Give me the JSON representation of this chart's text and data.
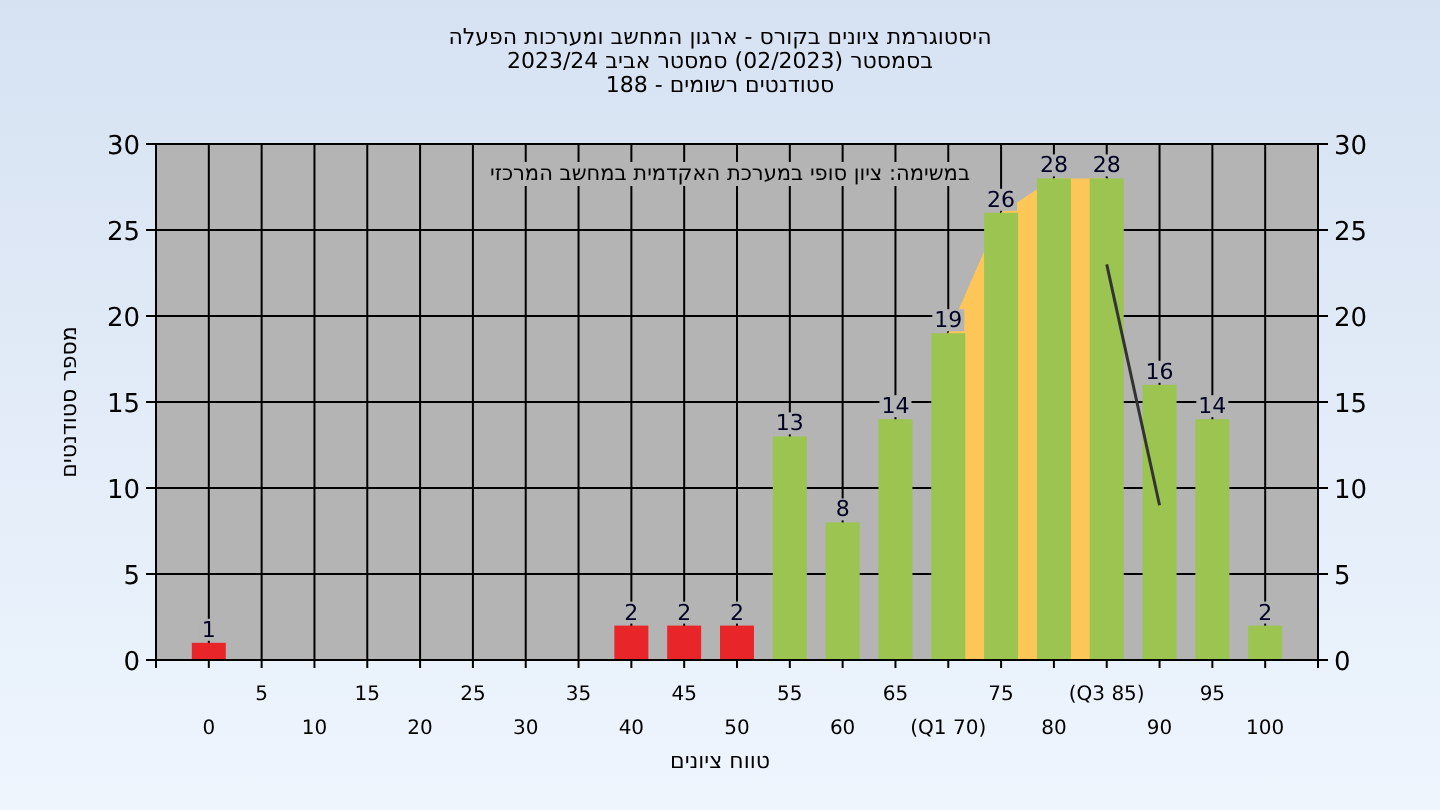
{
  "chart_data": {
    "type": "bar",
    "title": "היסטוגרמת ציונים בקורס - ארגון המחשב ומערכות הפעלה",
    "subtitle": "בסמסטר  (02/2023)  סמסטר אביב 2023/24\nסטודנטים רשומים - 188",
    "xlabel": "טווח ציונים",
    "ylabel": "מספר סטודנטים",
    "annotations": [
      "במשימה: ציון סופי במערכת האקדמית במחשב המרכזי"
    ],
    "categories": [
      "0",
      "5",
      "10",
      "15",
      "20",
      "25",
      "30",
      "35",
      "40",
      "45",
      "50",
      "55",
      "60",
      "65",
      "(Q1 70)",
      "75",
      "80",
      "(Q3 85)",
      "90",
      "95",
      "100"
    ],
    "series": [
      {
        "type": "area",
        "color": "#fcc659",
        "values": [
          null,
          null,
          null,
          null,
          null,
          null,
          null,
          null,
          null,
          null,
          null,
          null,
          null,
          null,
          19,
          26,
          28,
          28,
          null,
          null,
          null
        ]
      },
      {
        "values": [
          1,
          0,
          0,
          0,
          0,
          0,
          0,
          0,
          2,
          2,
          2,
          13,
          8,
          14,
          19,
          26,
          28,
          28,
          16,
          14,
          2
        ],
        "colors": [
          "#e8262a",
          "#e8262a",
          "#e8262a",
          "#e8262a",
          "#e8262a",
          "#e8262a",
          "#e8262a",
          "#e8262a",
          "#e8262a",
          "#e8262a",
          "#e8262a",
          "#9bc450",
          "#9bc450",
          "#9bc450",
          "#9bc450",
          "#9bc450",
          "#9bc450",
          "#9bc450",
          "#9bc450",
          "#9bc450",
          "#9bc450"
        ],
        "value_labels": [
          "1",
          null,
          null,
          null,
          null,
          null,
          null,
          null,
          "2",
          "2",
          "2",
          "13",
          "8",
          "14",
          "19",
          "26",
          "28",
          "28",
          "16",
          "14",
          "2"
        ]
      },
      {
        "type": "line",
        "color": "#333333",
        "values": [
          null,
          null,
          null,
          null,
          null,
          null,
          null,
          null,
          null,
          null,
          null,
          null,
          null,
          null,
          null,
          null,
          null,
          23,
          9,
          null,
          null
        ]
      }
    ],
    "ylim": [
      0,
      30
    ],
    "yticks": [
      0,
      5,
      10,
      15,
      20,
      25,
      30
    ],
    "y2lim": [
      0,
      30
    ],
    "y2ticks": [
      0,
      5,
      10,
      15,
      20,
      25,
      30
    ],
    "grid": true
  }
}
